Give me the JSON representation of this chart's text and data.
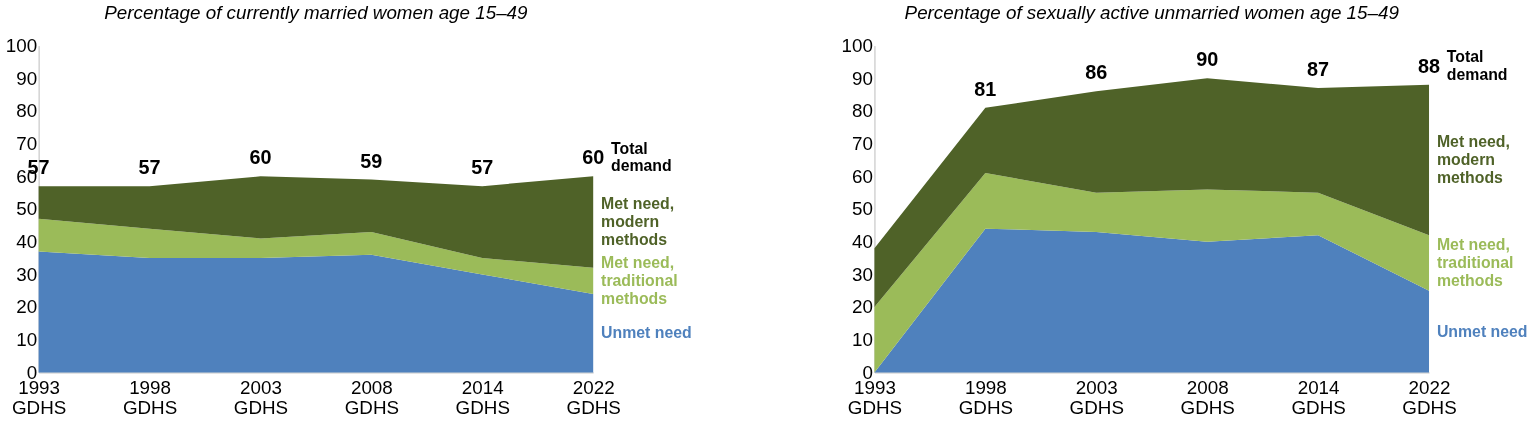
{
  "chart_data": [
    {
      "type": "area",
      "stacked": true,
      "title": "Percentage of currently married women age 15–49",
      "categories": [
        "1993 GDHS",
        "1998 GDHS",
        "2003 GDHS",
        "2008 GDHS",
        "2014 GDHS",
        "2022 GDHS"
      ],
      "series": [
        {
          "name": "Unmet need",
          "color": "#4f81bd",
          "values": [
            37,
            35,
            35,
            36,
            30,
            24
          ]
        },
        {
          "name": "Met need,\ntraditional\nmethods",
          "color": "#9bbb59",
          "values": [
            10,
            9,
            6,
            7,
            5,
            8
          ]
        },
        {
          "name": "Met need,\nmodern\nmethods",
          "color": "#4f6228",
          "values": [
            10,
            13,
            19,
            16,
            22,
            28
          ]
        }
      ],
      "totals": [
        "57",
        "57",
        "60",
        "59",
        "57",
        "60"
      ],
      "annotations": [
        {
          "text": "Total\ndemand",
          "x": "2022 GDHS",
          "y": 60
        }
      ],
      "ylim": [
        0,
        100
      ],
      "yticks": [
        0,
        10,
        20,
        30,
        40,
        50,
        60,
        70,
        80,
        90,
        100
      ],
      "grid": false,
      "legend": false
    },
    {
      "type": "area",
      "stacked": true,
      "title": "Percentage of sexually active unmarried women age 15–49",
      "categories": [
        "1993 GDHS",
        "1998 GDHS",
        "2003 GDHS",
        "2008 GDHS",
        "2014 GDHS",
        "2022 GDHS"
      ],
      "series": [
        {
          "name": "Unmet need",
          "color": "#4f81bd",
          "values": [
            0,
            44,
            43,
            40,
            42,
            25
          ]
        },
        {
          "name": "Met need,\ntraditional\nmethods",
          "color": "#9bbb59",
          "values": [
            20,
            17,
            12,
            16,
            13,
            17
          ]
        },
        {
          "name": "Met need,\nmodern\nmethods",
          "color": "#4f6228",
          "values": [
            18,
            20,
            31,
            34,
            32,
            46
          ]
        }
      ],
      "totals": [
        null,
        "81",
        "86",
        "90",
        "87",
        "88"
      ],
      "annotations": [
        {
          "text": "Total\ndemand",
          "x": "2022 GDHS",
          "y": 88
        }
      ],
      "ylim": [
        0,
        100
      ],
      "yticks": [
        0,
        10,
        20,
        30,
        40,
        50,
        60,
        70,
        80,
        90,
        100
      ],
      "grid": false,
      "legend": false
    }
  ]
}
